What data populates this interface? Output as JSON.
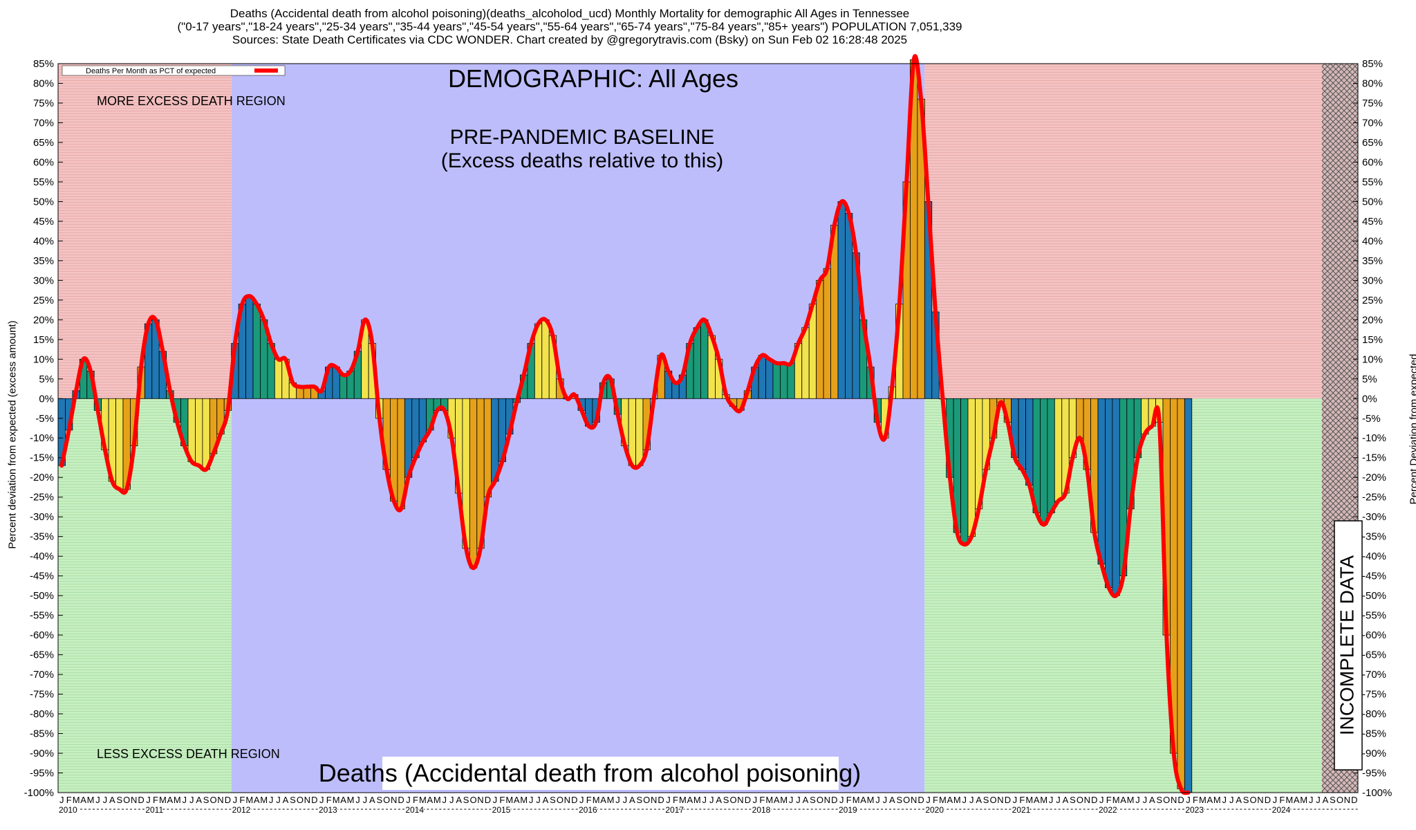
{
  "header": {
    "line1": "Deaths (Accidental death from alcohol poisoning)(deaths_alcoholod_ucd) Monthly Mortality for demographic All Ages in Tennessee",
    "line2": "(\"0-17 years\",\"18-24 years\",\"25-34 years\",\"35-44 years\",\"45-54 years\",\"55-64 years\",\"65-74 years\",\"75-84 years\",\"85+ years\") POPULATION 7,051,339",
    "line3": "Sources: State Death Certificates via CDC WONDER.                Chart created by @gregorytravis.com (Bsky) on Sun Feb 02 16:28:48 2025"
  },
  "chart_data": {
    "type": "bar",
    "ylabel_left": "Percent deviation from expected (excess amount)",
    "ylabel_right": "Percent Deviation from expected",
    "legend_label": "Deaths Per Month as PCT of expected",
    "ylim": [
      -100,
      85
    ],
    "ytick_step": 5,
    "annotations": {
      "demographic": "DEMOGRAPHIC: All Ages",
      "baseline_title": "PRE-PANDEMIC BASELINE",
      "baseline_sub": "(Excess deaths relative to this)",
      "more_region": "MORE EXCESS DEATH REGION",
      "less_region": "LESS EXCESS DEATH REGION",
      "bottom_title": "Deaths (Accidental death from alcohol poisoning)",
      "incomplete": "INCOMPLETE DATA"
    },
    "month_letters": [
      "J",
      "F",
      "M",
      "A",
      "M",
      "J",
      "J",
      "A",
      "S",
      "O",
      "N",
      "D"
    ],
    "years": [
      "2010",
      "2011",
      "2012",
      "2013",
      "2014",
      "2015",
      "2016",
      "2017",
      "2018",
      "2019",
      "2020",
      "2021",
      "2022",
      "2023",
      "2024"
    ],
    "bar_colors": [
      "#1f77b4",
      "#1a9a78",
      "#f2e34c",
      "#e6a11a"
    ],
    "line_color": "#ff0000",
    "regions": {
      "excess_color": "#f4c2c2",
      "deficit_color": "#c6efc1",
      "baseline_color": "#bdbdfc",
      "baseline_start": "2012-01",
      "baseline_end": "2019-12",
      "incomplete_start": "2024-08"
    },
    "start": "2010-01",
    "values": [
      -17,
      -8,
      2,
      10,
      7,
      -3,
      -13,
      -21,
      -23,
      -23,
      -12,
      8,
      19,
      20,
      12,
      2,
      -6,
      -12,
      -16,
      -17,
      -18,
      -14,
      -9,
      -3,
      14,
      24,
      26,
      24,
      20,
      14,
      10,
      10,
      4,
      3,
      3,
      3,
      2,
      8,
      8,
      6,
      7,
      12,
      20,
      14,
      -5,
      -18,
      -26,
      -28,
      -20,
      -15,
      -11,
      -8,
      -3,
      -3,
      -10,
      -24,
      -38,
      -43,
      -38,
      -25,
      -21,
      -16,
      -9,
      -1,
      6,
      14,
      19,
      20,
      16,
      5,
      0,
      1,
      -3,
      -7,
      -6,
      4,
      5,
      -4,
      -12,
      -17,
      -17,
      -13,
      0,
      11,
      7,
      4,
      6,
      14,
      18,
      20,
      16,
      10,
      1,
      -2,
      -3,
      2,
      8,
      11,
      10,
      9,
      9,
      9,
      14,
      18,
      24,
      30,
      33,
      44,
      50,
      47,
      37,
      20,
      8,
      -6,
      -10,
      3,
      24,
      55,
      86,
      76,
      50,
      22,
      0,
      -20,
      -34,
      -37,
      -35,
      -28,
      -18,
      -10,
      -1,
      -6,
      -15,
      -18,
      -22,
      -29,
      -32,
      -29,
      -26,
      -24,
      -15,
      -10,
      -18,
      -34,
      -42,
      -48,
      -50,
      -45,
      -28,
      -15,
      -9,
      -7,
      -6,
      -60,
      -90,
      -99,
      -100
    ]
  }
}
